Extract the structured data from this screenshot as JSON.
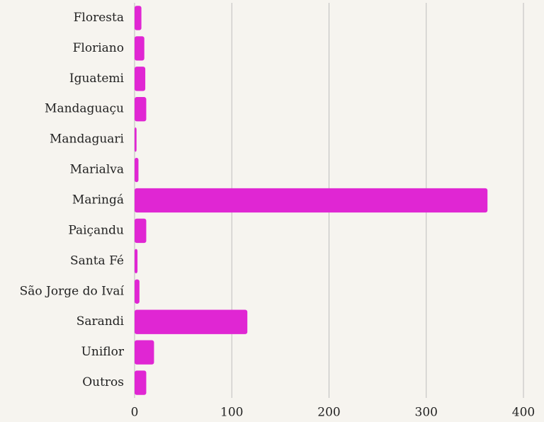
{
  "chart_data": {
    "type": "bar",
    "orientation": "horizontal",
    "categories": [
      "Floresta",
      "Floriano",
      "Iguatemi",
      "Mandaguaçu",
      "Mandaguari",
      "Marialva",
      "Maringá",
      "Paiçandu",
      "Santa Fé",
      "São Jorge do Ivaí",
      "Sarandi",
      "Uniflor",
      "Outros"
    ],
    "values": [
      7,
      10,
      11,
      12,
      2,
      4,
      363,
      12,
      3,
      5,
      116,
      20,
      12
    ],
    "color": "#e026d3",
    "xlim": [
      0,
      400
    ],
    "xticks": [
      0,
      100,
      200,
      300,
      400
    ],
    "grid": true
  }
}
